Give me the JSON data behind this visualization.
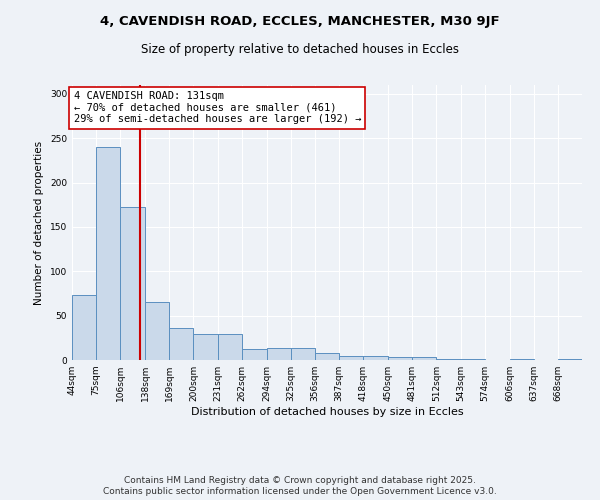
{
  "title_line1": "4, CAVENDISH ROAD, ECCLES, MANCHESTER, M30 9JF",
  "title_line2": "Size of property relative to detached houses in Eccles",
  "xlabel": "Distribution of detached houses by size in Eccles",
  "ylabel": "Number of detached properties",
  "bar_edges": [
    44,
    75,
    106,
    138,
    169,
    200,
    231,
    262,
    294,
    325,
    356,
    387,
    418,
    450,
    481,
    512,
    543,
    574,
    606,
    637,
    668,
    699
  ],
  "bar_heights": [
    73,
    240,
    173,
    65,
    36,
    29,
    29,
    12,
    14,
    14,
    8,
    4,
    4,
    3,
    3,
    1,
    1,
    0,
    1,
    0,
    1
  ],
  "bar_color": "#cad9ea",
  "bar_edgecolor": "#5a8fc0",
  "bar_linewidth": 0.7,
  "vline_x": 131,
  "vline_color": "#cc0000",
  "vline_linewidth": 1.5,
  "annotation_text": "4 CAVENDISH ROAD: 131sqm\n← 70% of detached houses are smaller (461)\n29% of semi-detached houses are larger (192) →",
  "annotation_box_edgecolor": "#cc0000",
  "annotation_box_facecolor": "#ffffff",
  "annotation_fontsize": 7.5,
  "ylim": [
    0,
    310
  ],
  "yticks": [
    0,
    50,
    100,
    150,
    200,
    250,
    300
  ],
  "tick_labels": [
    "44sqm",
    "75sqm",
    "106sqm",
    "138sqm",
    "169sqm",
    "200sqm",
    "231sqm",
    "262sqm",
    "294sqm",
    "325sqm",
    "356sqm",
    "387sqm",
    "418sqm",
    "450sqm",
    "481sqm",
    "512sqm",
    "543sqm",
    "574sqm",
    "606sqm",
    "637sqm",
    "668sqm"
  ],
  "footer_line1": "Contains HM Land Registry data © Crown copyright and database right 2025.",
  "footer_line2": "Contains public sector information licensed under the Open Government Licence v3.0.",
  "background_color": "#eef2f7",
  "grid_color": "#ffffff",
  "title_fontsize": 9.5,
  "subtitle_fontsize": 8.5,
  "axis_label_fontsize": 8,
  "tick_fontsize": 6.5,
  "ylabel_fontsize": 7.5,
  "footer_fontsize": 6.5
}
